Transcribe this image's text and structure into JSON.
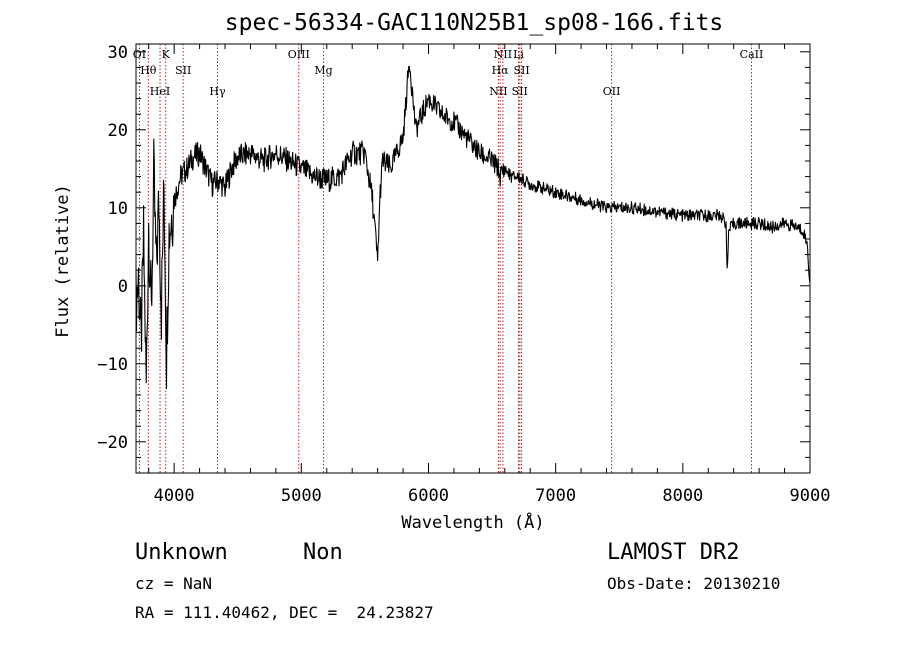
{
  "chart_data": {
    "type": "line",
    "title": "spec-56334-GAC110N25B1_sp08-166.fits",
    "xlabel": "Wavelength (Å)",
    "ylabel": "Flux (relative)",
    "xlim": [
      3700,
      9000
    ],
    "ylim": [
      -24,
      31
    ],
    "x_ticks": [
      4000,
      5000,
      6000,
      7000,
      8000,
      9000
    ],
    "y_ticks": [
      -20,
      -10,
      0,
      10,
      20,
      30
    ],
    "x_tick_labels": [
      "4000",
      "5000",
      "6000",
      "7000",
      "8000",
      "9000"
    ],
    "y_tick_labels": [
      "−20",
      "−10",
      "0",
      "10",
      "20",
      "30"
    ],
    "line_color": "#000000",
    "marker_color": "#b22222",
    "series": [
      {
        "name": "flux",
        "x": [
          3700,
          3720,
          3740,
          3760,
          3780,
          3800,
          3820,
          3840,
          3860,
          3880,
          3900,
          3920,
          3940,
          3960,
          3980,
          4000,
          4050,
          4100,
          4150,
          4200,
          4250,
          4300,
          4350,
          4400,
          4450,
          4500,
          4600,
          4700,
          4800,
          4900,
          5000,
          5100,
          5200,
          5300,
          5400,
          5500,
          5560,
          5600,
          5620,
          5640,
          5700,
          5800,
          5850,
          5900,
          6000,
          6100,
          6200,
          6300,
          6400,
          6500,
          6550,
          6560,
          6600,
          6650,
          6700,
          6800,
          7000,
          7200,
          7400,
          7600,
          7800,
          8000,
          8200,
          8300,
          8340,
          8350,
          8360,
          8400,
          8500,
          8600,
          8700,
          8800,
          8900,
          8950,
          8980,
          9000
        ],
        "y": [
          -2,
          1,
          -8,
          6,
          -13,
          8,
          -4,
          14,
          2,
          11,
          -3,
          13,
          -9,
          7,
          9,
          11,
          14,
          15,
          16.5,
          17,
          15,
          13,
          13.5,
          12.5,
          15,
          16.5,
          17,
          16,
          17,
          16,
          15,
          14,
          13.5,
          14,
          17,
          17,
          11,
          3,
          12,
          16,
          15,
          19,
          29,
          20,
          24,
          22,
          21,
          19,
          17,
          16,
          15,
          14,
          15,
          14,
          14,
          13,
          12,
          11,
          10,
          10,
          9.5,
          9,
          9,
          9,
          8,
          1,
          7,
          8,
          8,
          8,
          7.5,
          8,
          7.5,
          7,
          5,
          0
        ]
      }
    ],
    "lines": [
      {
        "label": "OI",
        "x": 3727
      },
      {
        "label": "Hθ",
        "x": 3797
      },
      {
        "label": "HeI",
        "x": 3889
      },
      {
        "label": "K",
        "x": 3934
      },
      {
        "label": "SII",
        "x": 4071
      },
      {
        "label": "Hγ",
        "x": 4341
      },
      {
        "label": "OIII",
        "x": 4980
      },
      {
        "label": "Mg",
        "x": 5175
      },
      {
        "label": "NII",
        "x": 6550
      },
      {
        "label": "NII",
        "x": 6585
      },
      {
        "label": "Hα",
        "x": 6563
      },
      {
        "label": "SII",
        "x": 6718
      },
      {
        "label": "Li",
        "x": 6708
      },
      {
        "label": "SII",
        "x": 6732
      },
      {
        "label": "OII",
        "x": 7440
      },
      {
        "label": "CaII",
        "x": 8540
      }
    ]
  },
  "info": {
    "object_name": "Unknown",
    "object_class": "Non",
    "survey": "LAMOST DR2",
    "cz": "cz = NaN",
    "obs_date": "Obs-Date: 20130210",
    "coords": "RA = 111.40462, DEC =  24.23827"
  }
}
